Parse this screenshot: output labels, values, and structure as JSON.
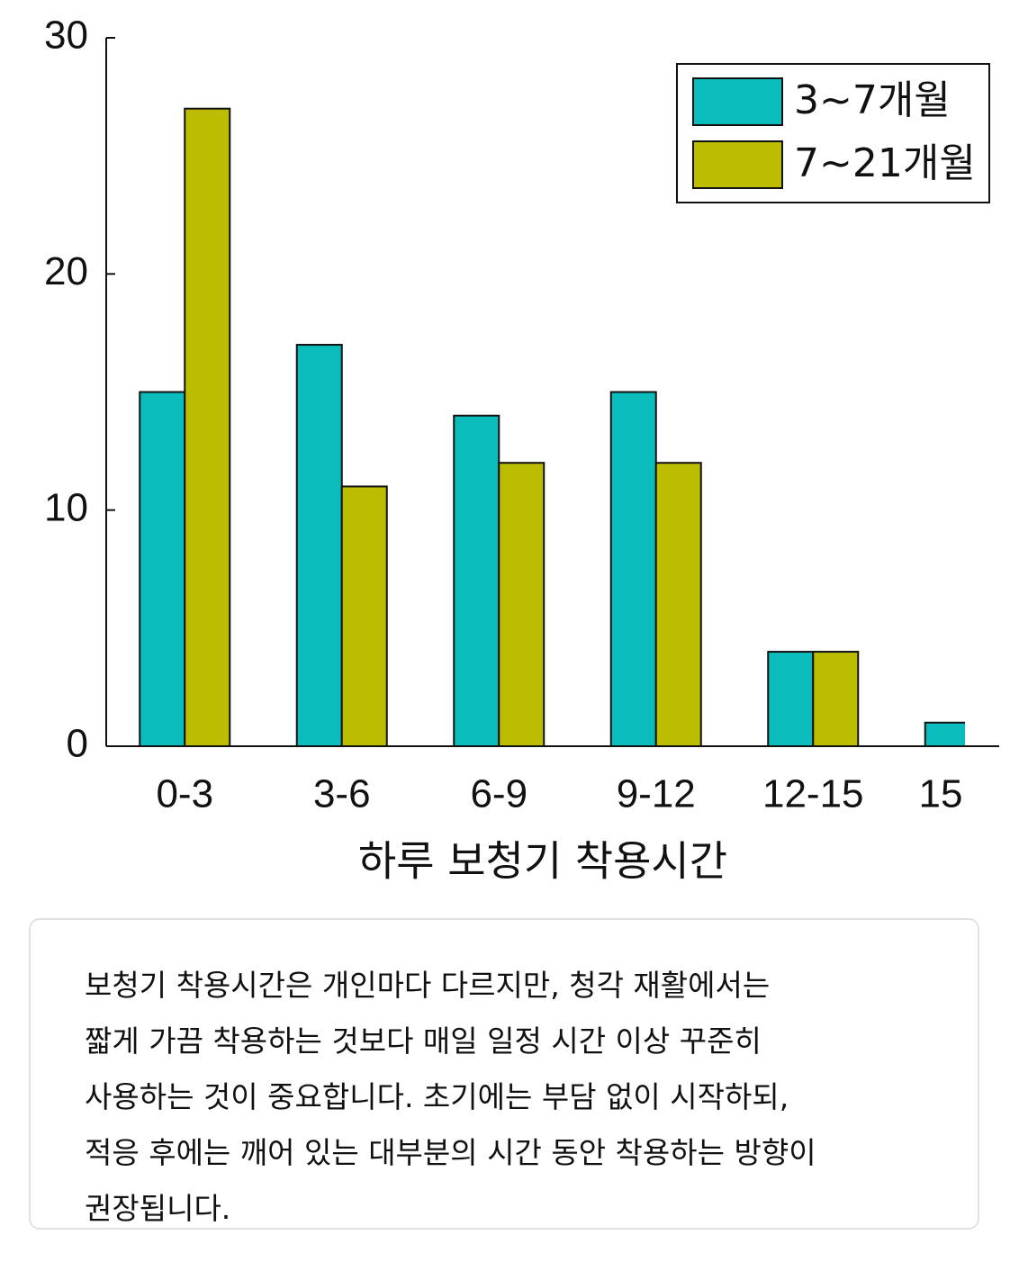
{
  "chart_data": {
    "type": "bar",
    "xlabel": "하루 보청기 착용시간",
    "categories": [
      "0-3",
      "3-6",
      "6-9",
      "9-12",
      "12-15",
      "15"
    ],
    "series": [
      {
        "name": "3~7개월",
        "color": "#0bbcbc",
        "values": [
          15,
          17,
          14,
          15,
          4,
          1
        ]
      },
      {
        "name": "7~21개월",
        "color": "#bcbc00",
        "values": [
          27,
          11,
          12,
          12,
          4,
          null
        ]
      }
    ],
    "ylim": [
      0,
      30
    ],
    "yticks": [
      0,
      10,
      20,
      30
    ],
    "grid": false,
    "legend": "upper right",
    "annotation": [
      "보청기 착용시간은 개인마다 다르지만, 청각 재활에서는",
      "짧게 가끔 착용하는 것보다 매일 일정 시간 이상 꾸준히",
      "사용하는 것이 중요합니다. 초기에는 부담 없이 시작하되,",
      "적응 후에는 깨어 있는 대부분의 시간 동안 착용하는 방향이",
      "권장됩니다."
    ]
  }
}
